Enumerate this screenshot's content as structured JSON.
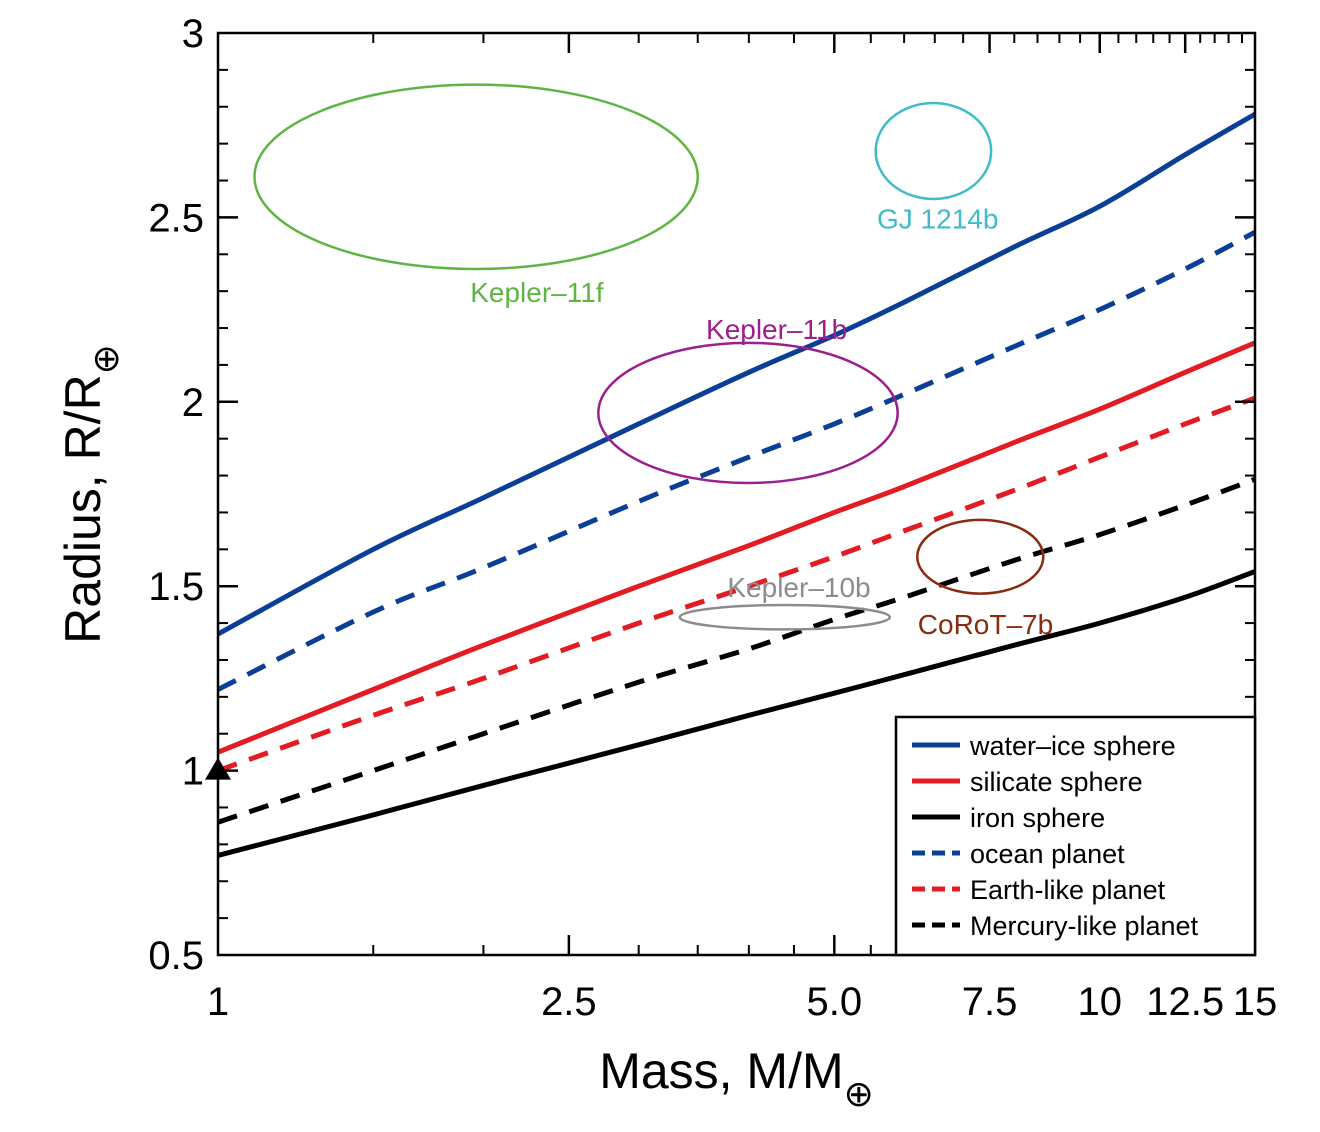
{
  "chart_data": {
    "type": "line",
    "xlabel": "Mass, M/M",
    "xlabel_sub": "⊕",
    "ylabel": "Radius, R/R",
    "ylabel_sub": "⊕",
    "xscale": "log",
    "xlim": [
      1,
      15
    ],
    "ylim": [
      0.5,
      3
    ],
    "x_ticks": [
      {
        "value": 1,
        "label": "1"
      },
      {
        "value": 2.5,
        "label": "2.5"
      },
      {
        "value": 5,
        "label": "5.0"
      },
      {
        "value": 7.5,
        "label": "7.5"
      },
      {
        "value": 10,
        "label": "10"
      },
      {
        "value": 12.5,
        "label": "12.5"
      },
      {
        "value": 15,
        "label": "15"
      }
    ],
    "y_ticks": [
      {
        "value": 0.5,
        "label": "0.5"
      },
      {
        "value": 1,
        "label": "1"
      },
      {
        "value": 1.5,
        "label": "1.5"
      },
      {
        "value": 2,
        "label": "2"
      },
      {
        "value": 2.5,
        "label": "2.5"
      },
      {
        "value": 3,
        "label": "3"
      }
    ],
    "grid": false,
    "legend_position": "bottom-right",
    "series": [
      {
        "name": "water–ice sphere",
        "color": "#0b3f97",
        "style": "solid",
        "x": [
          1,
          1.5,
          2,
          3,
          4,
          5,
          6,
          8,
          10,
          12.5,
          15
        ],
        "y": [
          1.37,
          1.6,
          1.74,
          1.94,
          2.08,
          2.18,
          2.27,
          2.42,
          2.53,
          2.67,
          2.78
        ]
      },
      {
        "name": "silicate sphere",
        "color": "#e31b23",
        "style": "solid",
        "x": [
          1,
          1.5,
          2,
          3,
          4,
          5,
          6,
          8,
          10,
          12.5,
          15
        ],
        "y": [
          1.05,
          1.22,
          1.34,
          1.5,
          1.61,
          1.7,
          1.77,
          1.89,
          1.98,
          2.08,
          2.16
        ]
      },
      {
        "name": "iron sphere",
        "color": "#000000",
        "style": "solid",
        "x": [
          1,
          1.5,
          2,
          3,
          4,
          5,
          6,
          8,
          10,
          12.5,
          15
        ],
        "y": [
          0.77,
          0.88,
          0.96,
          1.07,
          1.15,
          1.21,
          1.26,
          1.34,
          1.4,
          1.47,
          1.54
        ]
      },
      {
        "name": "ocean planet",
        "color": "#0b3f97",
        "style": "dashed",
        "x": [
          1,
          1.5,
          2,
          3,
          4,
          5,
          6,
          8,
          10,
          12.5,
          15
        ],
        "y": [
          1.22,
          1.43,
          1.55,
          1.73,
          1.85,
          1.94,
          2.02,
          2.15,
          2.25,
          2.36,
          2.46
        ]
      },
      {
        "name": "Earth-like planet",
        "color": "#e31b23",
        "style": "dashed",
        "x": [
          1,
          1.5,
          2,
          3,
          4,
          5,
          6,
          8,
          10,
          12.5,
          15
        ],
        "y": [
          1.0,
          1.15,
          1.25,
          1.4,
          1.5,
          1.58,
          1.65,
          1.76,
          1.85,
          1.94,
          2.01
        ]
      },
      {
        "name": "Mercury-like planet",
        "color": "#000000",
        "style": "dashed",
        "x": [
          1,
          1.5,
          2,
          3,
          4,
          5,
          6,
          8,
          10,
          12.5,
          15
        ],
        "y": [
          0.86,
          1.0,
          1.1,
          1.24,
          1.33,
          1.41,
          1.47,
          1.57,
          1.64,
          1.72,
          1.79
        ]
      }
    ],
    "annotations": [
      {
        "label": "Kepler–11f",
        "color": "#5fb543",
        "mass": 2.3,
        "radius": 2.61,
        "mass_half_width": 1.2,
        "radius_half_width": 0.25,
        "label_mass": 2.3,
        "label_radius": 2.3
      },
      {
        "label": "GJ 1214b",
        "color": "#3fbcc8",
        "mass": 6.55,
        "radius": 2.68,
        "mass_half_width": 0.98,
        "radius_half_width": 0.13,
        "label_mass": 6.55,
        "label_radius": 2.5
      },
      {
        "label": "Kepler–11b",
        "color": "#9b1f8e",
        "mass": 4.3,
        "radius": 1.97,
        "mass_half_width": 1.6,
        "radius_half_width": 0.19,
        "label_mass": 4.3,
        "label_radius": 2.2
      },
      {
        "label": "Kepler–10b",
        "color": "#8c8c8c",
        "mass": 4.56,
        "radius": 1.416,
        "mass_half_width": 1.22,
        "radius_half_width": 0.033,
        "label_mass": 4.56,
        "label_radius": 1.5
      },
      {
        "label": "CoRoT–7b",
        "color": "#8b2a0f",
        "mass": 7.42,
        "radius": 1.58,
        "mass_half_width": 1.21,
        "radius_half_width": 0.1,
        "label_mass": 7.42,
        "label_radius": 1.4
      }
    ],
    "markers": [
      {
        "name": "Earth",
        "shape": "triangle",
        "color": "#000000",
        "x": 1,
        "y": 1
      }
    ]
  }
}
